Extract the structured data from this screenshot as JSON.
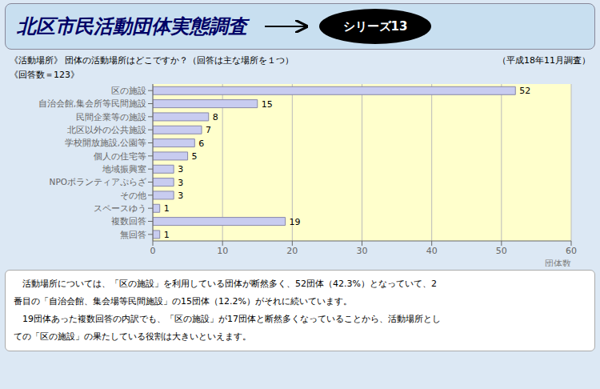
{
  "chart_data": {
    "type": "bar",
    "orientation": "horizontal",
    "title": "北区市民活動団体実態調査",
    "subtitle": "《活動場所》 団体の活動場所はどこですか？（回答は主な場所を１つ）",
    "annotations": [
      "シリーズ13",
      "（平成18年11月調査）",
      "《回答数＝123》",
      "　活動場所については、「区の施設」を利用している団体が断然多く、52団体（42.3%）となっていて、2",
      "番目の「自治会館、集会場等民間施設」の15団体（12.2%）がそれに続いています。",
      "　19団体あった複数回答の内訳でも、「区の施設」が17団体と断然多くなっていることから、活動場所とし",
      "ての「区の施設」の果たしている役割は大きいといえます。"
    ],
    "xlabel": "団体数",
    "categories": [
      "区の施設",
      "自治会館,集会所等民間施設",
      "民間企業等の施設",
      "北区以外の公共施設",
      "学校開放施設,公園等",
      "個人の住宅等",
      "地域振興室",
      "NPOボランティアぷらざ",
      "その他",
      "スペースゆう",
      "複数回答",
      "無回答"
    ],
    "values": [
      52,
      15,
      8,
      7,
      6,
      5,
      3,
      3,
      3,
      1,
      19,
      1
    ],
    "color": "#c8ccf0",
    "xlim": [
      0,
      60
    ],
    "xticks": [
      0,
      10,
      20,
      30,
      40,
      50,
      60
    ],
    "grid": true,
    "data_labels": true
  }
}
